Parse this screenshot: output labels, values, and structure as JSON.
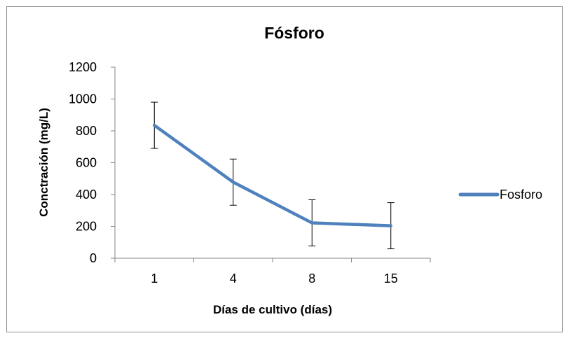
{
  "chart_data": {
    "type": "line",
    "title": "Fósforo",
    "xlabel": "Días de cultivo (días)",
    "ylabel": "Conctración (mg/L)",
    "categories": [
      "1",
      "4",
      "8",
      "15"
    ],
    "ylim": [
      0,
      1200
    ],
    "yticks": [
      0,
      200,
      400,
      600,
      800,
      1000,
      1200
    ],
    "grid": false,
    "legend_position": "right",
    "series": [
      {
        "name": "Fosforo",
        "color": "#4f81bd",
        "values": [
          835,
          478,
          222,
          204
        ],
        "error": [
          145,
          145,
          145,
          145
        ]
      }
    ]
  }
}
